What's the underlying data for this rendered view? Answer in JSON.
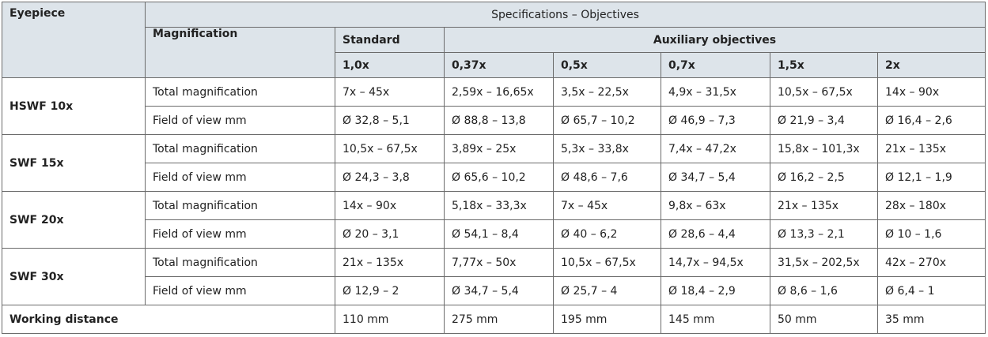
{
  "header": {
    "eyepiece": "Eyepiece",
    "specifications": "Specifications – Objectives",
    "magnification": "Magnification",
    "standard": "Standard",
    "auxiliary": "Auxiliary objectives",
    "objectives": [
      "1,0x",
      "0,37x",
      "0,5x",
      "0,7x",
      "1,5x",
      "2x"
    ]
  },
  "rows": [
    {
      "eyepiece": "HSWF 10x",
      "total_label": "Total magnification",
      "total": [
        "7x – 45x",
        "2,59x – 16,65x",
        "3,5x – 22,5x",
        "4,9x – 31,5x",
        "10,5x – 67,5x",
        "14x – 90x"
      ],
      "field_label": "Field of view mm",
      "field": [
        "Ø 32,8 – 5,1",
        "Ø 88,8 – 13,8",
        "Ø 65,7 – 10,2",
        "Ø 46,9 – 7,3",
        "Ø 21,9 – 3,4",
        "Ø 16,4 – 2,6"
      ]
    },
    {
      "eyepiece": "SWF 15x",
      "total_label": "Total magnification",
      "total": [
        "10,5x – 67,5x",
        "3,89x – 25x",
        "5,3x – 33,8x",
        "7,4x – 47,2x",
        "15,8x – 101,3x",
        "21x – 135x"
      ],
      "field_label": "Field of view mm",
      "field": [
        "Ø 24,3 – 3,8",
        "Ø 65,6 – 10,2",
        "Ø 48,6 – 7,6",
        "Ø 34,7 – 5,4",
        "Ø 16,2 – 2,5",
        "Ø 12,1 – 1,9"
      ]
    },
    {
      "eyepiece": "SWF 20x",
      "total_label": "Total magnification",
      "total": [
        "14x – 90x",
        "5,18x – 33,3x",
        "7x – 45x",
        "9,8x – 63x",
        "21x – 135x",
        "28x – 180x"
      ],
      "field_label": "Field of view mm",
      "field": [
        "Ø 20 – 3,1",
        "Ø 54,1 – 8,4",
        "Ø 40 – 6,2",
        "Ø 28,6 – 4,4",
        "Ø 13,3 – 2,1",
        "Ø 10 – 1,6"
      ]
    },
    {
      "eyepiece": "SWF 30x",
      "total_label": "Total magnification",
      "total": [
        "21x – 135x",
        "7,77x – 50x",
        "10,5x – 67,5x",
        "14,7x – 94,5x",
        "31,5x – 202,5x",
        "42x – 270x"
      ],
      "field_label": "Field of view mm",
      "field": [
        "Ø 12,9 – 2",
        "Ø 34,7 – 5,4",
        "Ø 25,7 – 4",
        "Ø 18,4 – 2,9",
        "Ø 8,6 – 1,6",
        "Ø 6,4 – 1"
      ]
    }
  ],
  "working_distance": {
    "label": "Working distance",
    "values": [
      "110 mm",
      "275 mm",
      "195 mm",
      "145 mm",
      "50 mm",
      "35 mm"
    ]
  }
}
